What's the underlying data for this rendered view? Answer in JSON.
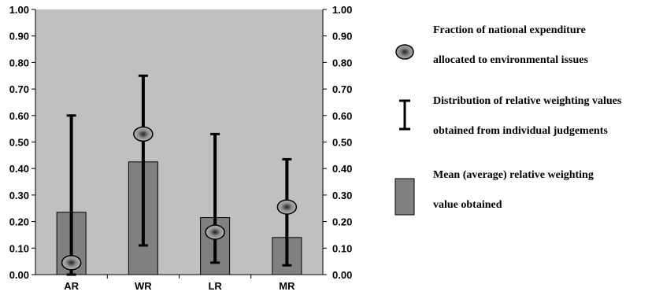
{
  "chart_data": {
    "type": "bar",
    "categories": [
      "AR",
      "WR",
      "LR",
      "MR"
    ],
    "series": [
      {
        "name": "Mean (average) relative weighting value obtained",
        "values": [
          0.235,
          0.425,
          0.215,
          0.14
        ]
      },
      {
        "name": "Fraction of national expenditure allocated to environmental issues",
        "values": [
          0.045,
          0.53,
          0.16,
          0.255
        ]
      }
    ],
    "error_ranges": [
      {
        "low": 0.0,
        "high": 0.6
      },
      {
        "low": 0.11,
        "high": 0.75
      },
      {
        "low": 0.045,
        "high": 0.53
      },
      {
        "low": 0.035,
        "high": 0.435
      }
    ],
    "ylim": [
      0,
      1
    ],
    "yticks": [
      "0.00",
      "0.10",
      "0.20",
      "0.30",
      "0.40",
      "0.50",
      "0.60",
      "0.70",
      "0.80",
      "0.90",
      "1.00"
    ],
    "secondary_y_axis": true,
    "plot_background": "#c0c0c0",
    "bar_color": "#808080",
    "marker_color": "#909090",
    "errorbar_color": "#000000",
    "grid": false,
    "legend_position": "right",
    "title": "",
    "xlabel": "",
    "ylabel": ""
  },
  "legend": {
    "items": [
      {
        "icon": "ellipse-marker-icon",
        "line1": "Fraction of national expenditure",
        "line2": "allocated to environmental issues"
      },
      {
        "icon": "error-bar-icon",
        "line1": "Distribution of relative weighting values",
        "line2": "obtained from individual judgements"
      },
      {
        "icon": "bar-swatch-icon",
        "line1": "Mean (average) relative weighting",
        "line2": "value obtained"
      }
    ]
  }
}
